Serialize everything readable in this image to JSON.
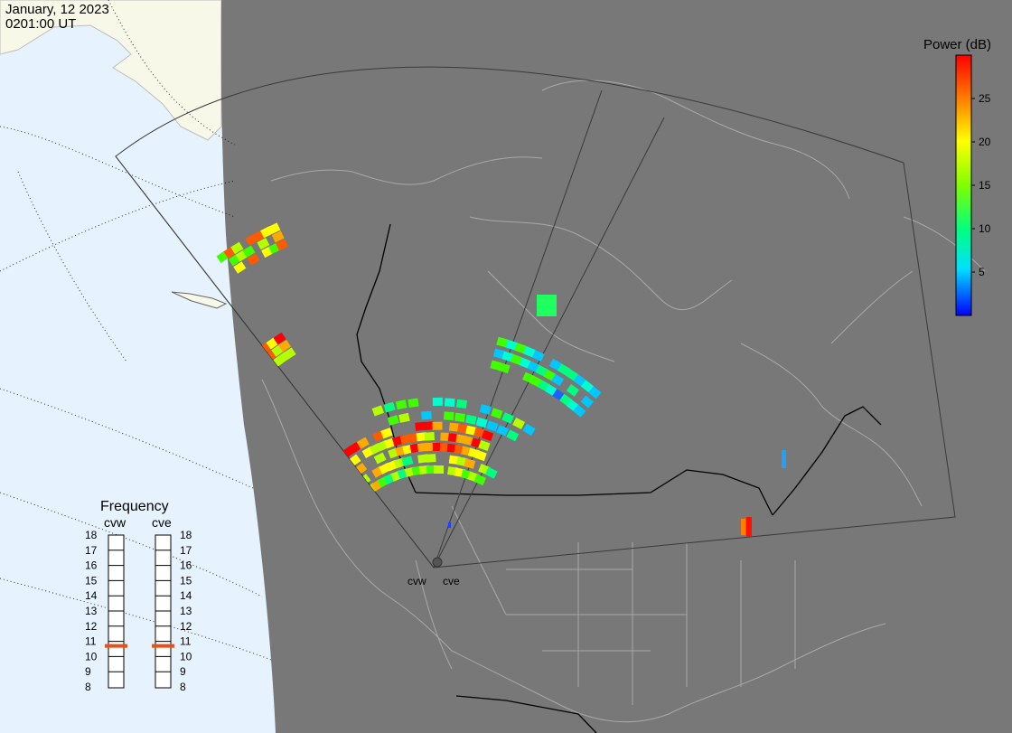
{
  "header": {
    "date": "January, 12 2023",
    "time": "0201:00 UT"
  },
  "colorbar": {
    "title": "Power (dB)",
    "ticks": [
      "25",
      "20",
      "15",
      "10",
      "5"
    ],
    "tick_values": [
      25,
      20,
      15,
      10,
      5
    ],
    "range": [
      0,
      30
    ]
  },
  "frequency_panel": {
    "title": "Frequency",
    "radars": [
      "cvw",
      "cve"
    ],
    "scale": [
      "18",
      "17",
      "16",
      "15",
      "14",
      "13",
      "12",
      "11",
      "10",
      "9",
      "8"
    ],
    "range_mhz": [
      8,
      18
    ],
    "current_mhz": {
      "cvw": 10.7,
      "cve": 10.7
    },
    "marker_color": "#e8501a"
  },
  "radar_labels": [
    "cvw",
    "cve"
  ],
  "map": {
    "night_color": "#787878",
    "day_land_color": "#f8f8e8",
    "day_ocean_color": "#e6f3ff",
    "outline_color": "#bdbdbd"
  }
}
